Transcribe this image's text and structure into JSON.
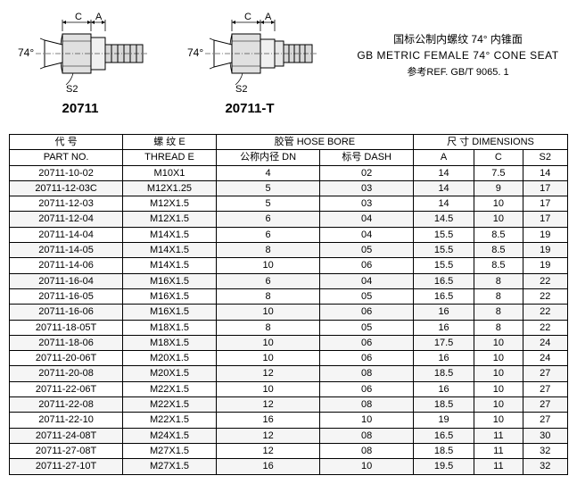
{
  "diagram1": {
    "angle": "74°",
    "labelC": "C",
    "labelA": "A",
    "labelS2": "S2",
    "partLabel": "20711"
  },
  "diagram2": {
    "angle": "74°",
    "labelC": "C",
    "labelA": "A",
    "labelS2": "S2",
    "partLabel": "20711-T"
  },
  "titles": {
    "cn": "国标公制内螺纹 74° 内锥面",
    "en": "GB METRIC FEMALE 74° CONE SEAT",
    "ref": "参考REF. GB/T  9065. 1"
  },
  "table": {
    "head1": {
      "partno_cn": "代 号",
      "thread_cn": "螺 纹 E",
      "hose_cn": "胶管  HOSE BORE",
      "dims_cn": "尺 寸 DIMENSIONS"
    },
    "head2": {
      "partno_en": "PART NO.",
      "thread_en": "THREAD  E",
      "dn": "公称内径 DN",
      "dash": "标号 DASH",
      "A": "A",
      "C": "C",
      "S2": "S2"
    },
    "rows": [
      {
        "pn": "20711-10-02",
        "th": "M10X1",
        "dn": "4",
        "dash": "02",
        "a": "14",
        "c": "7.5",
        "s2": "14",
        "hl": false
      },
      {
        "pn": "20711-12-03C",
        "th": "M12X1.25",
        "dn": "5",
        "dash": "03",
        "a": "14",
        "c": "9",
        "s2": "17",
        "hl": true
      },
      {
        "pn": "20711-12-03",
        "th": "M12X1.5",
        "dn": "5",
        "dash": "03",
        "a": "14",
        "c": "10",
        "s2": "17",
        "hl": false
      },
      {
        "pn": "20711-12-04",
        "th": "M12X1.5",
        "dn": "6",
        "dash": "04",
        "a": "14.5",
        "c": "10",
        "s2": "17",
        "hl": true
      },
      {
        "pn": "20711-14-04",
        "th": "M14X1.5",
        "dn": "6",
        "dash": "04",
        "a": "15.5",
        "c": "8.5",
        "s2": "19",
        "hl": false
      },
      {
        "pn": "20711-14-05",
        "th": "M14X1.5",
        "dn": "8",
        "dash": "05",
        "a": "15.5",
        "c": "8.5",
        "s2": "19",
        "hl": true
      },
      {
        "pn": "20711-14-06",
        "th": "M14X1.5",
        "dn": "10",
        "dash": "06",
        "a": "15.5",
        "c": "8.5",
        "s2": "19",
        "hl": false
      },
      {
        "pn": "20711-16-04",
        "th": "M16X1.5",
        "dn": "6",
        "dash": "04",
        "a": "16.5",
        "c": "8",
        "s2": "22",
        "hl": true
      },
      {
        "pn": "20711-16-05",
        "th": "M16X1.5",
        "dn": "8",
        "dash": "05",
        "a": "16.5",
        "c": "8",
        "s2": "22",
        "hl": false
      },
      {
        "pn": "20711-16-06",
        "th": "M16X1.5",
        "dn": "10",
        "dash": "06",
        "a": "16",
        "c": "8",
        "s2": "22",
        "hl": true
      },
      {
        "pn": "20711-18-05T",
        "th": "M18X1.5",
        "dn": "8",
        "dash": "05",
        "a": "16",
        "c": "8",
        "s2": "22",
        "hl": false
      },
      {
        "pn": "20711-18-06",
        "th": "M18X1.5",
        "dn": "10",
        "dash": "06",
        "a": "17.5",
        "c": "10",
        "s2": "24",
        "hl": true
      },
      {
        "pn": "20711-20-06T",
        "th": "M20X1.5",
        "dn": "10",
        "dash": "06",
        "a": "16",
        "c": "10",
        "s2": "24",
        "hl": false
      },
      {
        "pn": "20711-20-08",
        "th": "M20X1.5",
        "dn": "12",
        "dash": "08",
        "a": "18.5",
        "c": "10",
        "s2": "27",
        "hl": true
      },
      {
        "pn": "20711-22-06T",
        "th": "M22X1.5",
        "dn": "10",
        "dash": "06",
        "a": "16",
        "c": "10",
        "s2": "27",
        "hl": false
      },
      {
        "pn": "20711-22-08",
        "th": "M22X1.5",
        "dn": "12",
        "dash": "08",
        "a": "18.5",
        "c": "10",
        "s2": "27",
        "hl": true
      },
      {
        "pn": "20711-22-10",
        "th": "M22X1.5",
        "dn": "16",
        "dash": "10",
        "a": "19",
        "c": "10",
        "s2": "27",
        "hl": false
      },
      {
        "pn": "20711-24-08T",
        "th": "M24X1.5",
        "dn": "12",
        "dash": "08",
        "a": "16.5",
        "c": "11",
        "s2": "30",
        "hl": true
      },
      {
        "pn": "20711-27-08T",
        "th": "M27X1.5",
        "dn": "12",
        "dash": "08",
        "a": "18.5",
        "c": "11",
        "s2": "32",
        "hl": false
      },
      {
        "pn": "20711-27-10T",
        "th": "M27X1.5",
        "dn": "16",
        "dash": "10",
        "a": "19.5",
        "c": "11",
        "s2": "32",
        "hl": true
      }
    ]
  }
}
